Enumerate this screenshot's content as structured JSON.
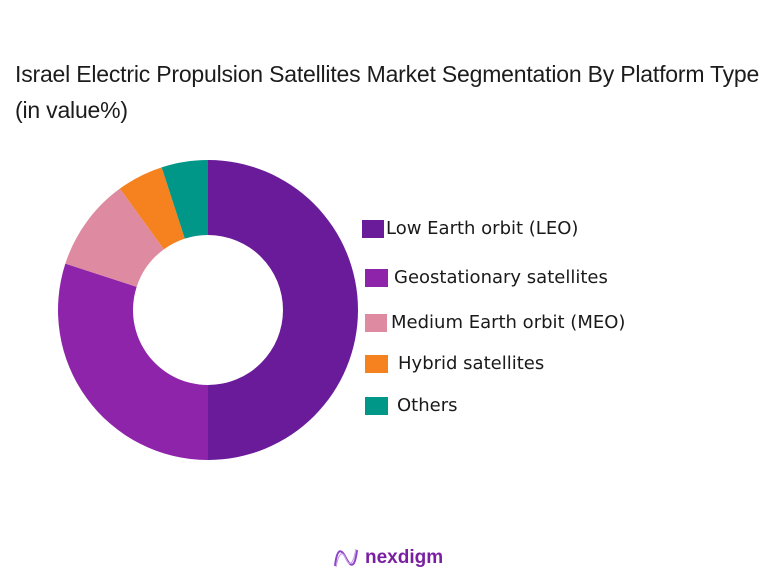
{
  "title": "Israel Electric Propulsion Satellites Market Segmentation By Platform Type (in value%)",
  "chart_data": {
    "type": "pie",
    "subtype": "donut",
    "title": "Israel Electric Propulsion Satellites Market Segmentation By Platform Type (in value%)",
    "categories": [
      "Low Earth orbit (LEO)",
      "Geostationary satellites",
      "Medium Earth orbit (MEO)",
      "Hybrid satellites",
      "Others"
    ],
    "values": [
      50,
      30,
      10,
      5,
      5
    ],
    "colors": [
      "#6a1b9a",
      "#8e24aa",
      "#de8aa0",
      "#f5821f",
      "#009688"
    ],
    "legend_position": "right",
    "unit": "%"
  },
  "legend": {
    "items": [
      {
        "label": "Low Earth orbit (LEO)",
        "color": "#6a1b9a"
      },
      {
        "label": "Geostationary satellites",
        "color": "#8e24aa"
      },
      {
        "label": "Medium Earth orbit (MEO)",
        "color": "#de8aa0"
      },
      {
        "label": "Hybrid satellites",
        "color": "#f5821f"
      },
      {
        "label": "Others",
        "color": "#009688"
      }
    ]
  },
  "branding": {
    "logo_text": "nexdigm"
  }
}
